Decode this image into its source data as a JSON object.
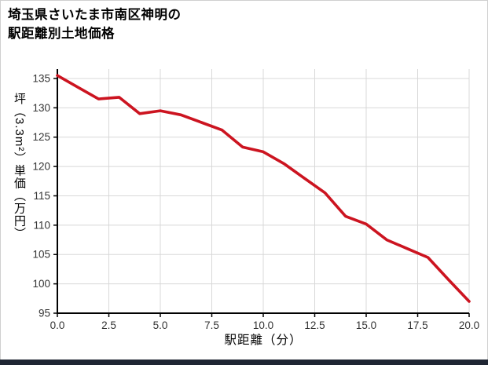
{
  "title": {
    "line1": "埼玉県さいたま市南区神明の",
    "line2": "駅距離別土地価格"
  },
  "chart_data": {
    "type": "line",
    "title": "埼玉県さいたま市南区神明の駅距離別土地価格",
    "xlabel": "駅距離（分）",
    "ylabel": "坪（3.3m²）単価（万円）",
    "x": [
      0,
      1,
      2,
      3,
      4,
      5,
      6,
      7,
      8,
      9,
      10,
      11,
      12,
      13,
      14,
      15,
      16,
      17,
      18,
      19,
      20
    ],
    "y": [
      135.5,
      133.5,
      131.5,
      131.8,
      129.0,
      129.5,
      128.8,
      127.5,
      126.2,
      123.3,
      122.5,
      120.5,
      118.0,
      115.5,
      111.5,
      110.2,
      107.5,
      106.0,
      104.5,
      100.7,
      97.0
    ],
    "xlim": [
      0,
      20
    ],
    "ylim": [
      95,
      136.6
    ],
    "xticks": [
      0,
      2.5,
      5,
      7.5,
      10,
      12.5,
      15,
      17.5,
      20
    ],
    "xtick_labels": [
      "0.0",
      "2.5",
      "5.0",
      "7.5",
      "10.0",
      "12.5",
      "15.0",
      "17.5",
      "20.0"
    ],
    "yticks": [
      95,
      100,
      105,
      110,
      115,
      120,
      125,
      130,
      135
    ],
    "grid": true,
    "legend": "none"
  },
  "colors": {
    "line": "#cc1420",
    "grid": "#d8d8d8",
    "axis": "#000000",
    "tick_text": "#333333",
    "footer_bar": "#1f2633"
  }
}
